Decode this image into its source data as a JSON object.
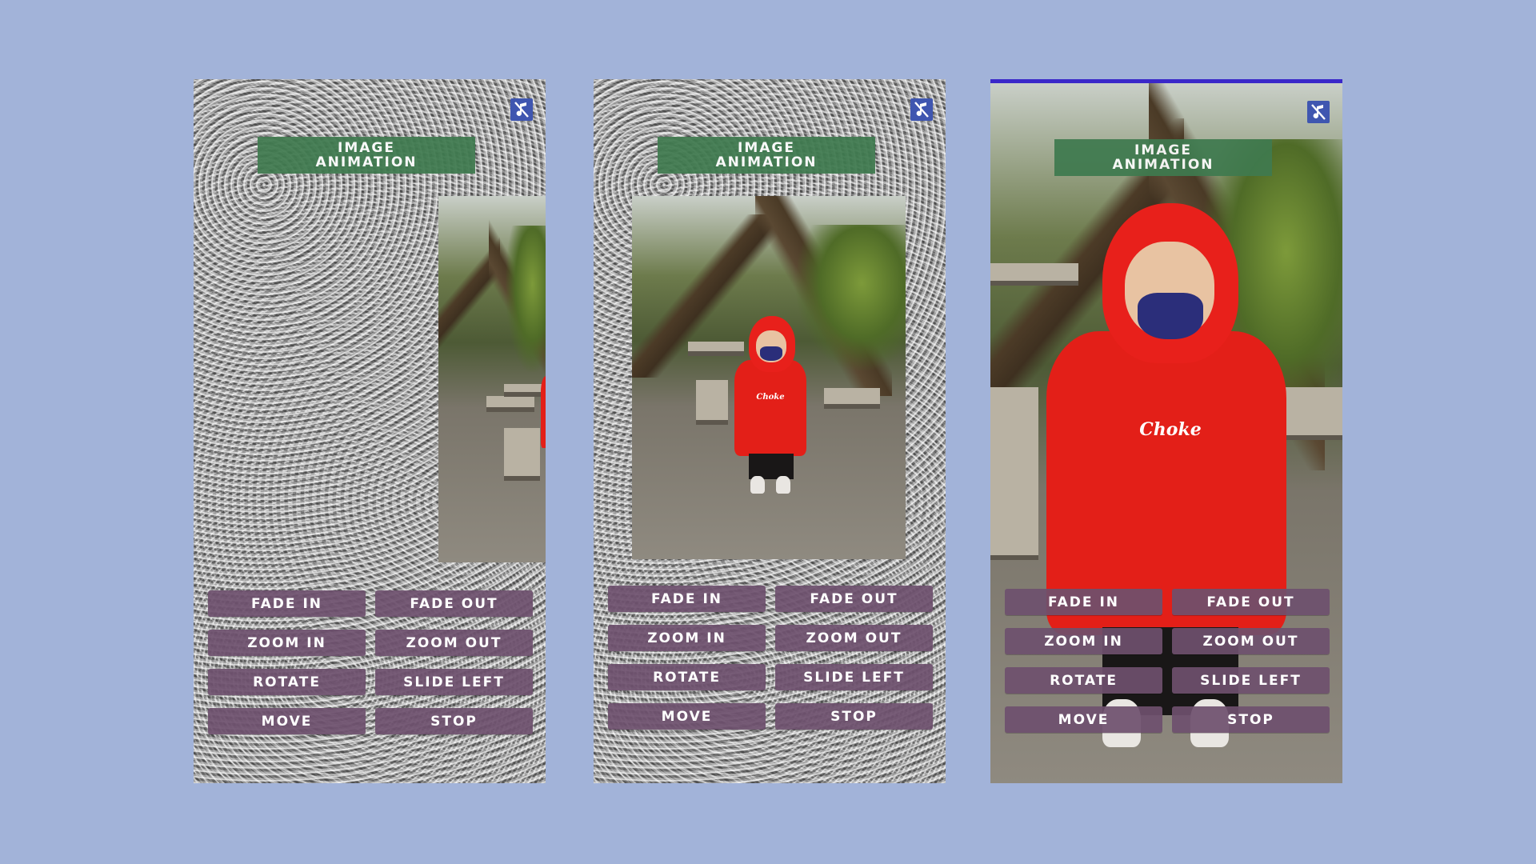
{
  "title_line1": "IMAGE",
  "title_line2": "ANIMATION",
  "photo_logo": "Choke",
  "buttons": {
    "fade_in": "FADE IN",
    "fade_out": "FADE OUT",
    "zoom_in": "ZOOM IN",
    "zoom_out": "ZOOM OUT",
    "rotate": "ROTATE",
    "slide_left": "SLIDE LEFT",
    "move": "MOVE",
    "stop": "STOP"
  },
  "colors": {
    "page_background": "#a2b3d9",
    "title_banner": "#3f7a4f",
    "button": "#6e506e",
    "mute_icon": "#3f56b0",
    "top_bar_screen_3": "#3a28c9"
  },
  "icons": {
    "mute": "music-note-off-icon"
  }
}
